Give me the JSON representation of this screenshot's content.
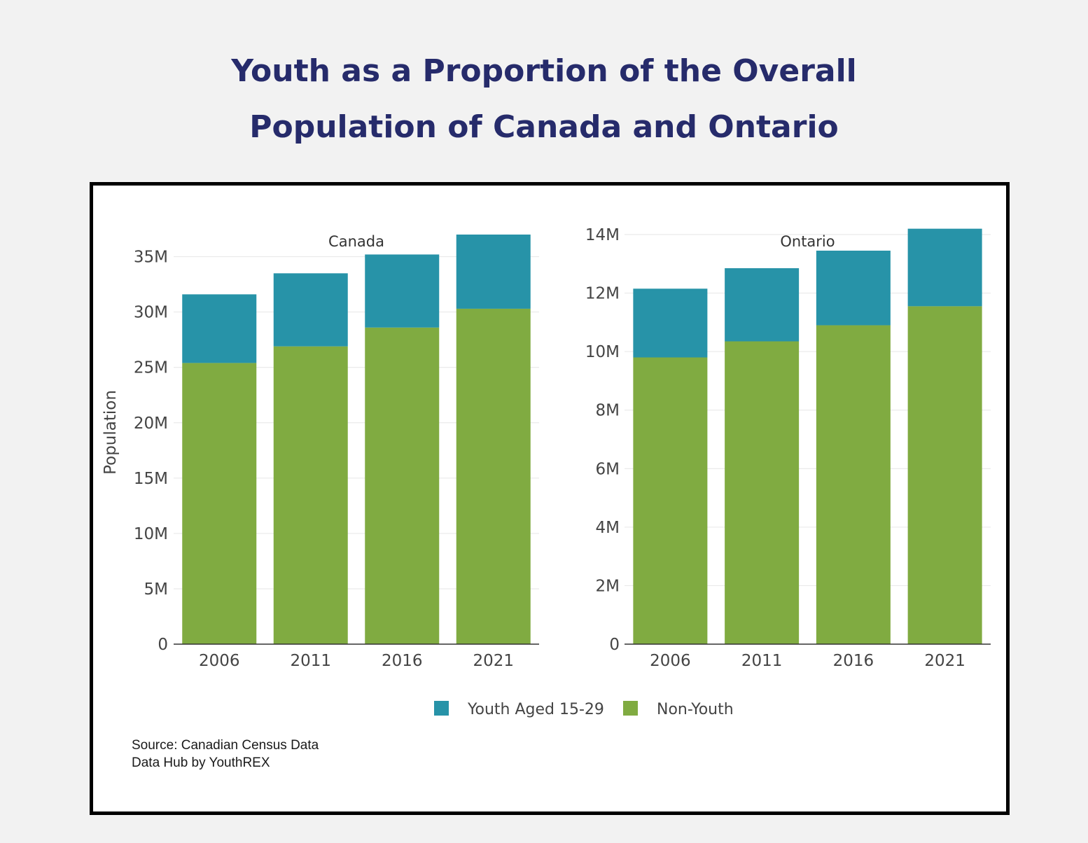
{
  "title": {
    "line1": "Youth as a Proportion of the Overall",
    "line2": "Population of Canada and Ontario"
  },
  "source": {
    "line1": "Source: Canadian Census Data",
    "line2": "Data Hub by YouthREX"
  },
  "colors": {
    "youth": "#2793a8",
    "non_youth": "#80ab41",
    "title": "#262b6b",
    "grid": "#e6e6e6",
    "text": "#444444"
  },
  "chart_data": [
    {
      "type": "bar",
      "stacked": true,
      "title": "Canada",
      "xlabel": "",
      "ylabel": "Population",
      "categories": [
        "2006",
        "2011",
        "2016",
        "2021"
      ],
      "ylim": [
        0,
        37000000
      ],
      "yticks": [
        0,
        5000000,
        10000000,
        15000000,
        20000000,
        25000000,
        30000000,
        35000000
      ],
      "ytick_labels": [
        "0",
        "5M",
        "10M",
        "15M",
        "20M",
        "25M",
        "30M",
        "35M"
      ],
      "grid": true,
      "series": [
        {
          "name": "Non-Youth",
          "values": [
            25400000,
            26900000,
            28600000,
            30300000
          ]
        },
        {
          "name": "Youth Aged 15-29",
          "values": [
            6200000,
            6600000,
            6600000,
            6700000
          ]
        }
      ]
    },
    {
      "type": "bar",
      "stacked": true,
      "title": "Ontario",
      "xlabel": "",
      "ylabel": "",
      "categories": [
        "2006",
        "2011",
        "2016",
        "2021"
      ],
      "ylim": [
        0,
        14000000
      ],
      "yticks": [
        0,
        2000000,
        4000000,
        6000000,
        8000000,
        10000000,
        12000000,
        14000000
      ],
      "ytick_labels": [
        "0",
        "2M",
        "4M",
        "6M",
        "8M",
        "10M",
        "12M",
        "14M"
      ],
      "grid": true,
      "series": [
        {
          "name": "Non-Youth",
          "values": [
            9800000,
            10350000,
            10900000,
            11550000
          ]
        },
        {
          "name": "Youth Aged 15-29",
          "values": [
            2350000,
            2500000,
            2550000,
            2650000
          ]
        }
      ]
    }
  ],
  "legend": {
    "position": "bottom-center",
    "items": [
      {
        "label": "Youth Aged 15-29",
        "color": "#2793a8"
      },
      {
        "label": "Non-Youth",
        "color": "#80ab41"
      }
    ]
  }
}
